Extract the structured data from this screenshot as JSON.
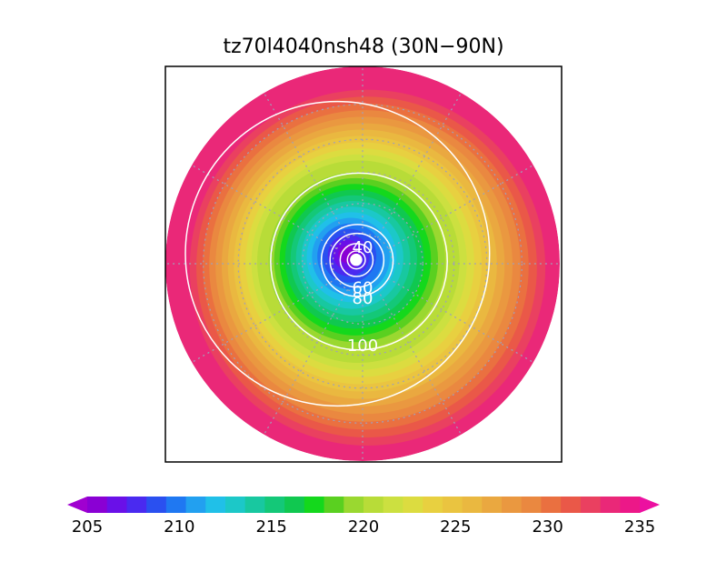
{
  "chart_data": {
    "type": "heatmap",
    "title": "tz70l4040nsh48 (30N−90N)",
    "projection": "polar-stereographic",
    "domain": "30N-90N",
    "colorbar": {
      "min": 205,
      "max": 235,
      "step": 1,
      "extend": "both",
      "ticks": [
        205,
        210,
        215,
        220,
        225,
        230,
        235
      ],
      "colors": [
        "#8a00d4",
        "#6a10e8",
        "#4a2af0",
        "#2a50f0",
        "#1f78f2",
        "#22a0f0",
        "#20c0e8",
        "#1cc8c8",
        "#18c8a0",
        "#14c878",
        "#10c850",
        "#14d81c",
        "#5ad020",
        "#9ad830",
        "#b8dc38",
        "#cce040",
        "#dcdc40",
        "#e8d040",
        "#eac440",
        "#eab840",
        "#eaa840",
        "#ea9840",
        "#ea8840",
        "#ea7040",
        "#ea5848",
        "#ea4060",
        "#ea2878",
        "#ec1888"
      ],
      "below_color": "#a000d0",
      "above_color": "#ec10a0"
    },
    "field_rings": [
      {
        "lat": 88.5,
        "value": 205.2
      },
      {
        "lat": 87,
        "value": 206
      },
      {
        "lat": 85,
        "value": 207
      },
      {
        "lat": 83,
        "value": 208
      },
      {
        "lat": 81,
        "value": 209
      },
      {
        "lat": 79,
        "value": 210
      },
      {
        "lat": 77,
        "value": 211
      },
      {
        "lat": 75,
        "value": 212
      },
      {
        "lat": 73,
        "value": 213
      },
      {
        "lat": 71,
        "value": 214
      },
      {
        "lat": 69,
        "value": 215
      },
      {
        "lat": 67,
        "value": 216
      },
      {
        "lat": 65,
        "value": 217
      },
      {
        "lat": 63,
        "value": 218
      },
      {
        "lat": 61,
        "value": 219
      },
      {
        "lat": 59,
        "value": 220
      },
      {
        "lat": 57,
        "value": 221
      },
      {
        "lat": 55,
        "value": 222
      },
      {
        "lat": 53,
        "value": 223
      },
      {
        "lat": 51,
        "value": 224
      },
      {
        "lat": 49,
        "value": 225
      },
      {
        "lat": 47,
        "value": 226
      },
      {
        "lat": 45,
        "value": 227
      },
      {
        "lat": 43,
        "value": 228
      },
      {
        "lat": 41,
        "value": 229
      },
      {
        "lat": 39,
        "value": 230
      },
      {
        "lat": 37,
        "value": 231
      },
      {
        "lat": 35,
        "value": 232
      }
    ],
    "contours": [
      {
        "value": 0,
        "lat": 89
      },
      {
        "value": 20,
        "lat": 87
      },
      {
        "value": 40,
        "lat": 84.5
      },
      {
        "value": 60,
        "lat": 81
      },
      {
        "value": 80,
        "lat": 78
      },
      {
        "value": 100,
        "lat": 61
      },
      {
        "value": 120,
        "lat": 42
      }
    ],
    "contour_labels": [
      {
        "text": "40",
        "lat": 84.5,
        "lon": 180
      },
      {
        "text": "60",
        "lat": 82,
        "lon": 0
      },
      {
        "text": "80",
        "lat": 78.5,
        "lon": 0
      },
      {
        "text": "100",
        "lat": 63,
        "lon": 0
      }
    ],
    "grid": {
      "lat_circles": [
        40,
        50,
        60,
        70,
        80
      ],
      "lon_step": 30
    }
  }
}
